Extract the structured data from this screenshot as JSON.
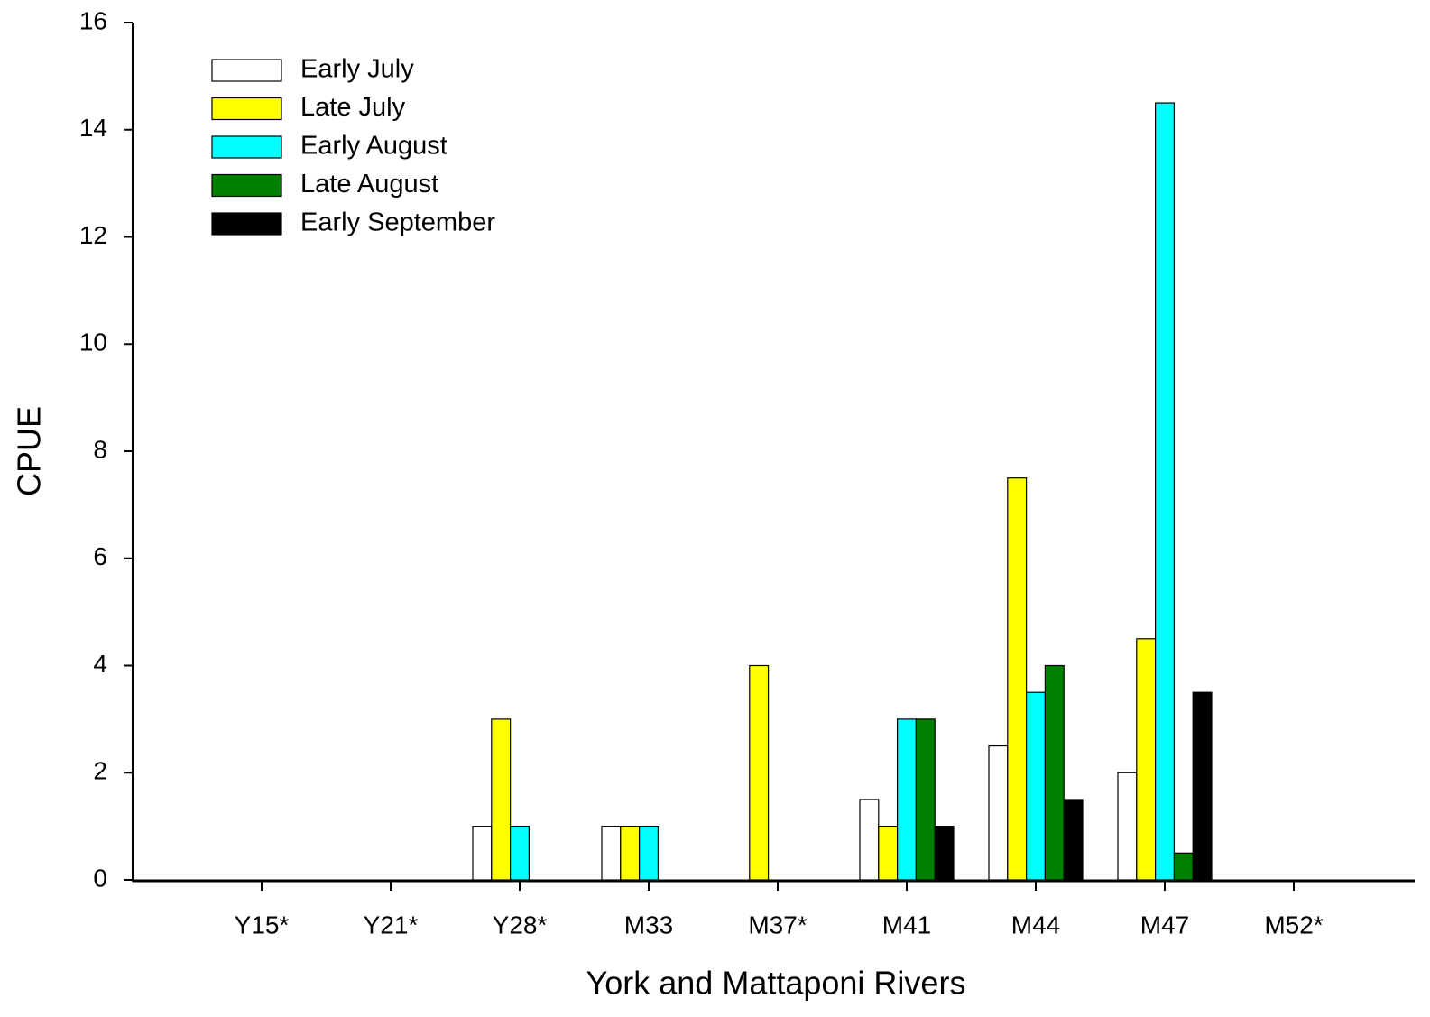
{
  "chart_data": {
    "type": "bar",
    "x_label": "York and Mattaponi Rivers",
    "y_label": "CPUE",
    "categories": [
      "Y15*",
      "Y21*",
      "Y28*",
      "M33",
      "M37*",
      "M41",
      "M44",
      "M47",
      "M52*"
    ],
    "series": [
      {
        "name": "Early July",
        "color": "#ffffff",
        "values": [
          0,
          0,
          1,
          1,
          0,
          1.5,
          2.5,
          2,
          0
        ]
      },
      {
        "name": "Late July",
        "color": "#ffff00",
        "values": [
          0,
          0,
          3,
          1,
          4,
          1,
          7.5,
          4.5,
          0
        ]
      },
      {
        "name": "Early August",
        "color": "#00ffff",
        "values": [
          0,
          0,
          1,
          1,
          0,
          3,
          3.5,
          14.5,
          0
        ]
      },
      {
        "name": "Late August",
        "color": "#008000",
        "values": [
          0,
          0,
          0,
          0,
          0,
          3,
          4,
          0.5,
          0
        ]
      },
      {
        "name": "Early September",
        "color": "#000000",
        "values": [
          0,
          0,
          0,
          0,
          0,
          1,
          1.5,
          3.5,
          0
        ]
      }
    ],
    "ylim": [
      0,
      16
    ],
    "yticks": [
      0,
      2,
      4,
      6,
      8,
      10,
      12,
      14,
      16
    ],
    "legend": "upper-left"
  }
}
